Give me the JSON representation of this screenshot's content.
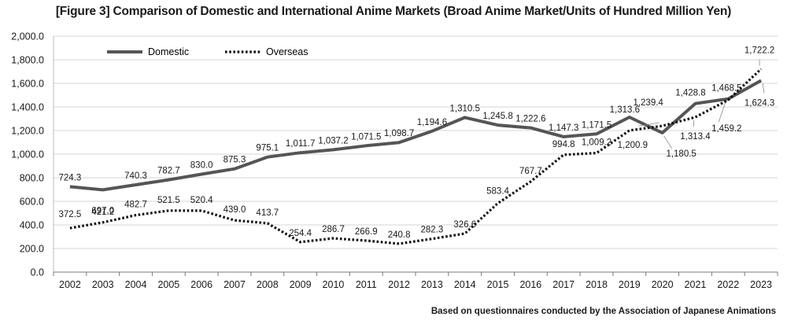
{
  "chart_data": {
    "type": "line",
    "title": "[Figure 3] Comparison of Domestic and International Anime Markets (Broad Anime Market/Units of Hundred Million Yen)",
    "source": "Based on questionnaires conducted by the Association of Japanese Animations",
    "xlabel": "",
    "ylabel": "",
    "ylim": [
      0,
      2000
    ],
    "yticks": [
      0,
      200,
      400,
      600,
      800,
      1000,
      1200,
      1400,
      1600,
      1800,
      2000
    ],
    "ytick_labels": [
      "0.0",
      "200.0",
      "400.0",
      "600.0",
      "800.0",
      "1,000.0",
      "1,200.0",
      "1,400.0",
      "1,600.0",
      "1,800.0",
      "2,000.0"
    ],
    "grid": true,
    "legend_position": "top-left",
    "categories": [
      "2002",
      "2003",
      "2004",
      "2005",
      "2006",
      "2007",
      "2008",
      "2009",
      "2010",
      "2011",
      "2012",
      "2013",
      "2014",
      "2015",
      "2016",
      "2017",
      "2018",
      "2019",
      "2020",
      "2021",
      "2022",
      "2023"
    ],
    "series": [
      {
        "name": "Domestic",
        "style": "solid",
        "color": "#555555",
        "values": [
          724.3,
          697.0,
          740.3,
          782.7,
          830.0,
          875.3,
          975.1,
          1011.7,
          1037.2,
          1071.5,
          1098.7,
          1194.6,
          1310.5,
          1245.8,
          1222.6,
          1147.3,
          1171.5,
          1313.6,
          1180.5,
          1428.8,
          1468.5,
          1624.3
        ],
        "labels": [
          "724.3",
          "697.0",
          "740.3",
          "782.7",
          "830.0",
          "875.3",
          "975.1",
          "1,011.7",
          "1,037.2",
          "1,071.5",
          "1,098.7",
          "1,194.6",
          "1,310.5",
          "1,245.8",
          "1,222.6",
          "1,147.3",
          "1,171.5",
          "1,313.6",
          "1,180.5",
          "1,428.8",
          "1,468.5",
          "1,624.3"
        ]
      },
      {
        "name": "Overseas",
        "style": "dotted",
        "color": "#111111",
        "values": [
          372.5,
          421.2,
          482.7,
          521.5,
          520.4,
          439.0,
          413.7,
          254.4,
          286.7,
          266.9,
          240.8,
          282.3,
          326.6,
          583.4,
          767.7,
          994.8,
          1009.2,
          1200.9,
          1239.4,
          1313.4,
          1459.2,
          1722.2
        ],
        "labels": [
          "372.5",
          "421.2",
          "482.7",
          "521.5",
          "520.4",
          "439.0",
          "413.7",
          "254.4",
          "286.7",
          "266.9",
          "240.8",
          "282.3",
          "326.6",
          "583.4",
          "767.7",
          "994.8",
          "1,009.2",
          "1,200.9",
          "1,239.4",
          "1,313.4",
          "1,459.2",
          "1,722.2"
        ]
      }
    ]
  }
}
